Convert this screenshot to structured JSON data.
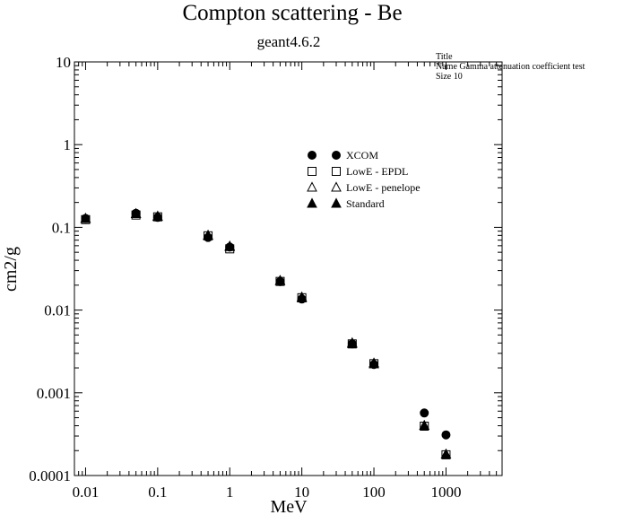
{
  "chart_data": {
    "type": "scatter",
    "title": "Compton scattering - Be",
    "subtitle": "geant4.6.2",
    "xlabel": "MeV",
    "ylabel": "cm2/g",
    "x_scale": "log",
    "y_scale": "log",
    "xlim": [
      0.007,
      6000
    ],
    "ylim": [
      0.0001,
      10
    ],
    "x_ticks": [
      "0.01",
      "0.1",
      "1",
      "10",
      "100",
      "1000"
    ],
    "y_ticks": [
      "0.0001",
      "0.001",
      "0.01",
      "0.1",
      "1",
      "10"
    ],
    "legend_position": "upper-right",
    "grid": false,
    "note_lines": [
      "Title",
      "Name  Gamma attenuation coefficient test",
      "Size  10"
    ],
    "series": [
      {
        "name": "XCOM",
        "marker": "filled-circle",
        "x": [
          0.01,
          0.05,
          0.1,
          0.5,
          1,
          5,
          10,
          50,
          100,
          500,
          1000
        ],
        "y": [
          0.128,
          0.148,
          0.132,
          0.0755,
          0.0578,
          0.0221,
          0.0136,
          0.0039,
          0.0022,
          0.00057,
          0.00031
        ]
      },
      {
        "name": "LowE - EPDL",
        "marker": "open-square",
        "x": [
          0.01,
          0.05,
          0.1,
          0.5,
          1,
          5,
          10,
          50,
          100,
          500,
          1000
        ],
        "y": [
          0.124,
          0.141,
          0.134,
          0.079,
          0.055,
          0.0222,
          0.0141,
          0.0039,
          0.00225,
          0.000395,
          0.000178
        ]
      },
      {
        "name": "LowE - penelope",
        "marker": "open-triangle",
        "x": [
          0.01,
          0.05,
          0.1,
          0.5,
          1,
          5,
          10,
          50,
          100,
          500,
          1000
        ],
        "y": [
          0.128,
          0.146,
          0.136,
          0.08,
          0.059,
          0.0227,
          0.0143,
          0.004,
          0.00228,
          0.0004,
          0.00018
        ]
      },
      {
        "name": "Standard",
        "marker": "filled-triangle",
        "x": [
          0.01,
          0.05,
          0.1,
          0.5,
          1,
          5,
          10,
          50,
          100,
          500,
          1000
        ],
        "y": [
          0.127,
          0.145,
          0.134,
          0.079,
          0.058,
          0.0225,
          0.0139,
          0.0039,
          0.00222,
          0.0004,
          0.00018
        ]
      }
    ]
  }
}
